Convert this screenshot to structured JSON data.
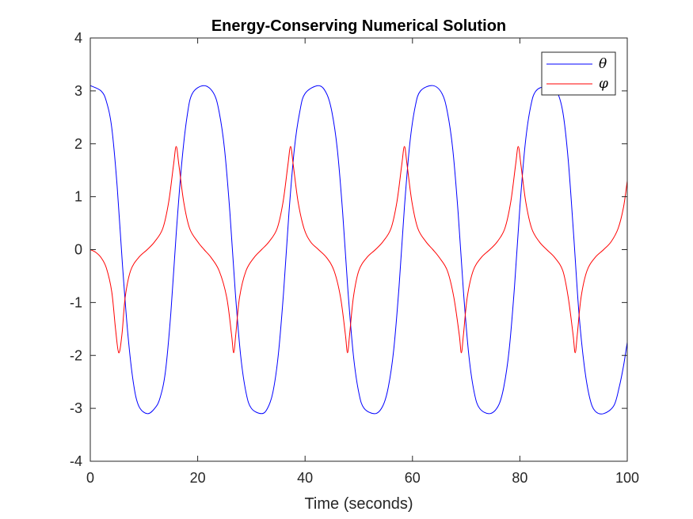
{
  "chart_data": {
    "type": "line",
    "title": "Energy-Conserving Numerical Solution",
    "xlabel": "Time (seconds)",
    "ylabel": "",
    "xlim": [
      0,
      100
    ],
    "ylim": [
      -4,
      4
    ],
    "xticks": [
      0,
      20,
      40,
      60,
      80,
      100
    ],
    "xtick_labels": [
      "0",
      "20",
      "40",
      "60",
      "80",
      "100"
    ],
    "yticks": [
      -4,
      -3,
      -2,
      -1,
      0,
      1,
      2,
      3,
      4
    ],
    "ytick_labels": [
      "-4",
      "-3",
      "-2",
      "-1",
      "0",
      "1",
      "2",
      "3",
      "4"
    ],
    "grid": false,
    "legend_position": "top-right",
    "series": [
      {
        "name": "θ",
        "color": "#0000ff",
        "x": [
          0,
          2,
          3,
          4,
          5,
          6,
          7,
          8,
          9,
          10.6,
          12,
          13,
          14,
          15,
          16,
          17,
          18,
          19,
          21.2,
          23,
          24,
          25,
          26,
          27,
          28,
          29,
          30,
          31.9,
          33,
          34,
          35,
          36,
          37,
          38,
          39,
          40,
          42.5,
          44,
          45,
          46,
          47,
          48,
          49,
          50,
          51,
          53.1,
          54.5,
          55.5,
          56.5,
          57.5,
          58.5,
          59.5,
          60.5,
          61.5,
          63.8,
          65.5,
          66.5,
          67.5,
          68.5,
          69.5,
          70.5,
          71.5,
          72.5,
          74.4,
          76,
          77,
          78,
          79,
          80,
          81,
          82,
          83,
          85,
          86.8,
          88,
          89,
          90,
          91,
          92,
          93,
          94,
          95.6,
          97.5,
          98.5,
          99.3,
          100
        ],
        "values": [
          3.1,
          3.0,
          2.8,
          2.3,
          1.2,
          -0.3,
          -1.6,
          -2.5,
          -2.95,
          -3.1,
          -3.0,
          -2.8,
          -2.3,
          -1.2,
          0.3,
          1.6,
          2.5,
          2.95,
          3.1,
          2.95,
          2.6,
          1.9,
          0.7,
          -0.8,
          -2.0,
          -2.7,
          -3.0,
          -3.1,
          -3.0,
          -2.7,
          -2.0,
          -0.8,
          0.7,
          1.9,
          2.6,
          2.95,
          3.1,
          2.95,
          2.6,
          1.9,
          0.7,
          -0.8,
          -2.0,
          -2.7,
          -3.0,
          -3.1,
          -2.95,
          -2.6,
          -1.9,
          -0.7,
          0.8,
          2.0,
          2.7,
          3.0,
          3.1,
          2.95,
          2.6,
          1.9,
          0.7,
          -0.8,
          -2.0,
          -2.7,
          -3.0,
          -3.1,
          -2.95,
          -2.6,
          -1.9,
          -0.7,
          0.8,
          2.0,
          2.7,
          3.0,
          3.08,
          3.0,
          2.6,
          1.7,
          0.3,
          -1.2,
          -2.2,
          -2.8,
          -3.05,
          -3.1,
          -2.95,
          -2.6,
          -2.2,
          -1.75
        ]
      },
      {
        "name": "φ",
        "color": "#ff0000",
        "x": [
          0,
          1,
          2,
          3,
          4,
          4.7,
          5.3,
          5.9,
          6.5,
          7.5,
          9,
          10.6,
          12,
          13.5,
          14.6,
          15.5,
          16,
          16.5,
          17.4,
          18.5,
          20,
          21.2,
          22.5,
          24,
          25.4,
          26.3,
          26.7,
          27.1,
          27.8,
          29,
          30.5,
          31.9,
          33.3,
          34.8,
          35.9,
          36.8,
          37.3,
          37.8,
          38.7,
          39.8,
          41,
          42.5,
          44,
          45.4,
          46.6,
          47.5,
          47.9,
          48.3,
          49,
          50,
          51.5,
          53.1,
          54.5,
          56,
          57.1,
          58,
          58.5,
          59,
          59.9,
          61,
          62.5,
          63.8,
          65,
          66.5,
          67.7,
          68.7,
          69.1,
          69.5,
          70.2,
          71.3,
          72.8,
          74.4,
          75.8,
          77.2,
          78.3,
          79.2,
          79.7,
          80.2,
          81.1,
          82.2,
          83.6,
          85,
          86.5,
          88,
          89,
          89.9,
          90.3,
          90.7,
          91.4,
          92.5,
          94,
          95.6,
          97,
          98.3,
          99.3,
          100
        ],
        "values": [
          0.0,
          -0.05,
          -0.15,
          -0.35,
          -0.8,
          -1.5,
          -1.95,
          -1.6,
          -0.9,
          -0.4,
          -0.15,
          0.0,
          0.15,
          0.4,
          0.9,
          1.6,
          1.95,
          1.6,
          0.9,
          0.4,
          0.15,
          0.0,
          -0.15,
          -0.4,
          -0.9,
          -1.6,
          -1.95,
          -1.6,
          -0.9,
          -0.4,
          -0.15,
          0.0,
          0.15,
          0.4,
          0.9,
          1.6,
          1.95,
          1.6,
          0.9,
          0.4,
          0.15,
          0.0,
          -0.15,
          -0.4,
          -0.9,
          -1.6,
          -1.95,
          -1.6,
          -0.9,
          -0.4,
          -0.15,
          0.0,
          0.15,
          0.4,
          0.9,
          1.6,
          1.95,
          1.6,
          0.9,
          0.4,
          0.15,
          0.0,
          -0.15,
          -0.4,
          -0.9,
          -1.6,
          -1.95,
          -1.6,
          -0.9,
          -0.4,
          -0.15,
          0.0,
          0.15,
          0.4,
          0.9,
          1.6,
          1.95,
          1.6,
          0.9,
          0.4,
          0.15,
          0.0,
          -0.15,
          -0.4,
          -0.9,
          -1.6,
          -1.95,
          -1.6,
          -0.9,
          -0.4,
          -0.15,
          0.0,
          0.15,
          0.4,
          0.8,
          1.3
        ]
      }
    ]
  }
}
